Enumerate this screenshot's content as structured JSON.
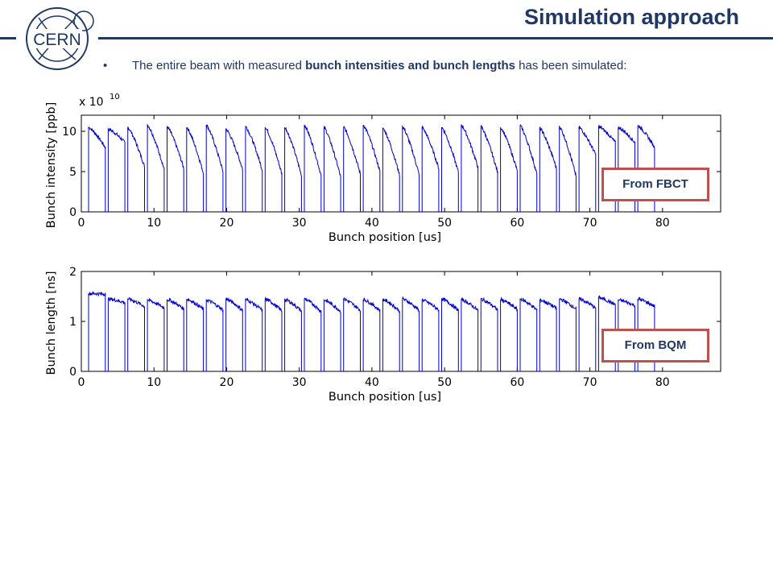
{
  "header": {
    "title": "Simulation approach",
    "logo_text": "CERN"
  },
  "bullet": {
    "symbol": "•",
    "text_before": "The entire beam with measured ",
    "bold_text": "bunch intensities and bunch lengths",
    "text_after": " has been simulated:"
  },
  "colors": {
    "title": "#1f3864",
    "trace": "#0000cc",
    "annotation_border": "#c0504d"
  },
  "chart_data": [
    {
      "type": "line",
      "xlabel": "Bunch position [us]",
      "ylabel": "Bunch intensity [ppb]",
      "multiplier_base": "x 10",
      "multiplier_exp": "10",
      "xlim": [
        0,
        88
      ],
      "ylim": [
        0,
        120000000000.0
      ],
      "xticks": [
        "0",
        "10",
        "20",
        "30",
        "40",
        "50",
        "60",
        "70",
        "80"
      ],
      "yticks": [
        {
          "value": 0,
          "label": "0"
        },
        {
          "value": 50000000000.0,
          "label": "5"
        },
        {
          "value": 100000000000.0,
          "label": "10"
        }
      ],
      "batch_starts_us": [
        1.0,
        3.7,
        6.4,
        9.1,
        11.8,
        14.5,
        17.2,
        19.9,
        22.6,
        25.3,
        28.0,
        30.7,
        33.4,
        36.1,
        38.8,
        41.5,
        44.2,
        46.9,
        49.6,
        52.3,
        55.0,
        57.7,
        60.4,
        63.1,
        65.8,
        68.5,
        71.2,
        73.9,
        76.6
      ],
      "batch_length_us": 2.3,
      "start_values": [
        105000000000.0,
        103000000000.0,
        105000000000.0,
        108000000000.0,
        106000000000.0,
        105000000000.0,
        108000000000.0,
        103000000000.0,
        106000000000.0,
        105000000000.0,
        105000000000.0,
        108000000000.0,
        105000000000.0,
        105000000000.0,
        108000000000.0,
        104000000000.0,
        106000000000.0,
        105000000000.0,
        105000000000.0,
        108000000000.0,
        106000000000.0,
        105000000000.0,
        107000000000.0,
        104000000000.0,
        106000000000.0,
        105000000000.0,
        106000000000.0,
        105000000000.0,
        107000000000.0
      ],
      "end_values": [
        80000000000.0,
        86000000000.0,
        56000000000.0,
        53000000000.0,
        54000000000.0,
        48000000000.0,
        50000000000.0,
        53000000000.0,
        52000000000.0,
        47000000000.0,
        45000000000.0,
        45000000000.0,
        43000000000.0,
        47000000000.0,
        50000000000.0,
        46000000000.0,
        46000000000.0,
        54000000000.0,
        49000000000.0,
        55000000000.0,
        49000000000.0,
        51000000000.0,
        47000000000.0,
        54000000000.0,
        44000000000.0,
        71000000000.0,
        86000000000.0,
        86000000000.0,
        80000000000.0
      ],
      "annotation": "From FBCT"
    },
    {
      "type": "line",
      "xlabel": "Bunch position [us]",
      "ylabel": "Bunch length [ns]",
      "xlim": [
        0,
        88
      ],
      "ylim": [
        0,
        2
      ],
      "xticks": [
        "0",
        "10",
        "20",
        "30",
        "40",
        "50",
        "60",
        "70",
        "80"
      ],
      "yticks": [
        {
          "value": 0,
          "label": "0"
        },
        {
          "value": 1,
          "label": "1"
        },
        {
          "value": 2,
          "label": "2"
        }
      ],
      "batch_starts_us": [
        1.0,
        3.7,
        6.4,
        9.1,
        11.8,
        14.5,
        17.2,
        19.9,
        22.6,
        25.3,
        28.0,
        30.7,
        33.4,
        36.1,
        38.8,
        41.5,
        44.2,
        46.9,
        49.6,
        52.3,
        55.0,
        57.7,
        60.4,
        63.1,
        65.8,
        68.5,
        71.2,
        73.9,
        76.6
      ],
      "batch_length_us": 2.3,
      "start_values": [
        1.56,
        1.45,
        1.45,
        1.43,
        1.44,
        1.45,
        1.43,
        1.45,
        1.44,
        1.45,
        1.44,
        1.45,
        1.43,
        1.45,
        1.44,
        1.44,
        1.45,
        1.43,
        1.45,
        1.44,
        1.45,
        1.44,
        1.45,
        1.43,
        1.45,
        1.45,
        1.48,
        1.43,
        1.45
      ],
      "end_values": [
        1.55,
        1.38,
        1.3,
        1.27,
        1.25,
        1.24,
        1.23,
        1.22,
        1.22,
        1.21,
        1.21,
        1.2,
        1.2,
        1.22,
        1.22,
        1.21,
        1.22,
        1.23,
        1.22,
        1.22,
        1.23,
        1.24,
        1.23,
        1.26,
        1.25,
        1.27,
        1.33,
        1.32,
        1.3
      ],
      "annotation": "From BQM"
    }
  ]
}
